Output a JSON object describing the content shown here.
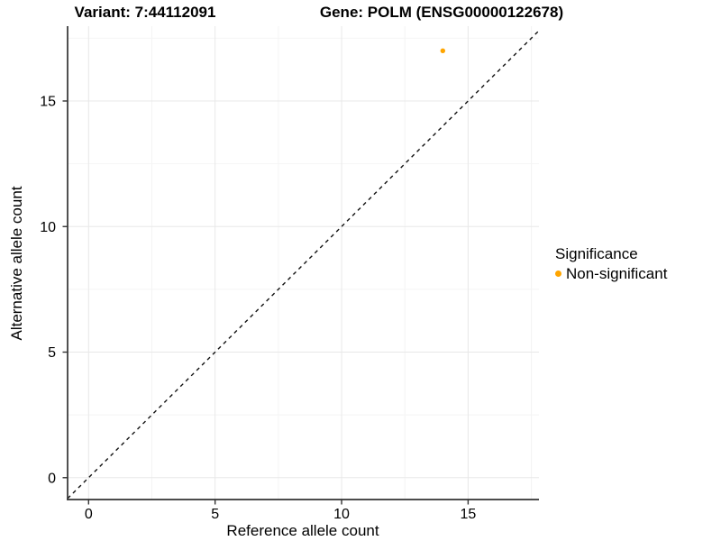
{
  "chart_data": {
    "type": "scatter",
    "titles": {
      "left": "Variant: 7:44112091",
      "right": "Gene: POLM (ENSG00000122678)"
    },
    "xlabel": "Reference allele count",
    "ylabel": "Alternative allele count",
    "xlim": [
      -0.83,
      17.8
    ],
    "ylim": [
      -0.87,
      17.98
    ],
    "x_major_ticks": [
      0,
      5,
      10,
      15
    ],
    "y_major_ticks": [
      0,
      5,
      10,
      15
    ],
    "x_minor_ticks": [
      2.5,
      7.5,
      12.5,
      17.5
    ],
    "y_minor_ticks": [
      2.5,
      7.5,
      12.5,
      17.5
    ],
    "grid": true,
    "series": [
      {
        "name": "Non-significant",
        "color": "#FFA500",
        "points": [
          {
            "x": 14,
            "y": 17
          }
        ]
      }
    ],
    "reference_line": {
      "slope": 1,
      "intercept": 0,
      "style": "dashed",
      "color": "#111111"
    },
    "legend": {
      "title": "Significance",
      "position": "right",
      "items": [
        {
          "label": "Non-significant",
          "color": "#FFA500"
        }
      ]
    },
    "colors": {
      "background": "#FFFFFF",
      "grid_major": "#E8E8E8",
      "grid_minor": "#F4F4F4",
      "axis_line": "#333333",
      "text": "#000000"
    }
  }
}
